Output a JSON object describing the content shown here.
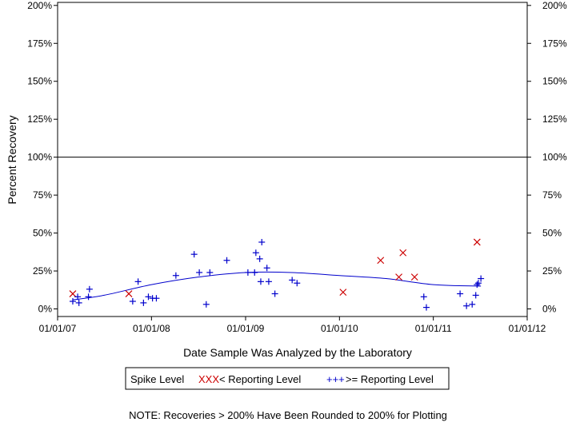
{
  "chart_data": {
    "type": "scatter",
    "xlabel": "Date Sample Was Analyzed by the Laboratory",
    "ylabel": "Percent Recovery",
    "x_ticks": [
      "01/01/07",
      "01/01/08",
      "01/01/09",
      "01/01/10",
      "01/01/11",
      "01/01/12"
    ],
    "xlim": [
      "2007-01-01",
      "2012-01-01"
    ],
    "y_ticks": [
      "0%",
      "25%",
      "50%",
      "75%",
      "100%",
      "125%",
      "150%",
      "175%",
      "200%"
    ],
    "ylim": [
      -5,
      202
    ],
    "reference_line": 100,
    "legend": {
      "title": "Spike Level",
      "entries": [
        {
          "symbol": "XXX",
          "label": "< Reporting Level",
          "color": "#cc0000"
        },
        {
          "symbol": "+++",
          "label": ">= Reporting Level",
          "color": "#0000cc"
        }
      ]
    },
    "note": "NOTE: Recoveries > 200% Have Been Rounded to 200% for Plotting",
    "series": [
      {
        "marker": "x",
        "color": "#cc0000",
        "points": [
          {
            "x": "2007-03-01",
            "y": 10
          },
          {
            "x": "2007-10-05",
            "y": 10
          },
          {
            "x": "2010-01-15",
            "y": 11
          },
          {
            "x": "2010-06-10",
            "y": 32
          },
          {
            "x": "2010-08-20",
            "y": 21
          },
          {
            "x": "2010-09-05",
            "y": 37
          },
          {
            "x": "2010-10-20",
            "y": 21
          },
          {
            "x": "2011-06-20",
            "y": 44
          }
        ]
      },
      {
        "marker": "+",
        "color": "#0000cc",
        "points": [
          {
            "x": "2007-03-01",
            "y": 5
          },
          {
            "x": "2007-03-20",
            "y": 8
          },
          {
            "x": "2007-03-25",
            "y": 4
          },
          {
            "x": "2007-05-01",
            "y": 8
          },
          {
            "x": "2007-05-05",
            "y": 13
          },
          {
            "x": "2007-10-20",
            "y": 5
          },
          {
            "x": "2007-11-10",
            "y": 18
          },
          {
            "x": "2007-12-01",
            "y": 4
          },
          {
            "x": "2007-12-20",
            "y": 8
          },
          {
            "x": "2008-01-05",
            "y": 7
          },
          {
            "x": "2008-01-20",
            "y": 7
          },
          {
            "x": "2008-04-05",
            "y": 22
          },
          {
            "x": "2008-06-15",
            "y": 36
          },
          {
            "x": "2008-07-05",
            "y": 24
          },
          {
            "x": "2008-08-01",
            "y": 3
          },
          {
            "x": "2008-08-15",
            "y": 24
          },
          {
            "x": "2008-10-20",
            "y": 32
          },
          {
            "x": "2009-01-10",
            "y": 24
          },
          {
            "x": "2009-02-05",
            "y": 24
          },
          {
            "x": "2009-02-10",
            "y": 37
          },
          {
            "x": "2009-02-25",
            "y": 33
          },
          {
            "x": "2009-03-01",
            "y": 18
          },
          {
            "x": "2009-03-05",
            "y": 44
          },
          {
            "x": "2009-03-25",
            "y": 27
          },
          {
            "x": "2009-04-01",
            "y": 18
          },
          {
            "x": "2009-04-25",
            "y": 10
          },
          {
            "x": "2009-07-01",
            "y": 19
          },
          {
            "x": "2009-07-20",
            "y": 17
          },
          {
            "x": "2010-11-25",
            "y": 8
          },
          {
            "x": "2010-12-05",
            "y": 1
          },
          {
            "x": "2011-04-15",
            "y": 10
          },
          {
            "x": "2011-05-10",
            "y": 2
          },
          {
            "x": "2011-06-01",
            "y": 3
          },
          {
            "x": "2011-06-15",
            "y": 9
          },
          {
            "x": "2011-06-20",
            "y": 16
          },
          {
            "x": "2011-06-25",
            "y": 17
          },
          {
            "x": "2011-07-05",
            "y": 20
          }
        ]
      }
    ],
    "trend": {
      "color": "#0000cc",
      "points": [
        {
          "x": "2007-03-01",
          "y": 6
        },
        {
          "x": "2007-07-01",
          "y": 9
        },
        {
          "x": "2008-01-01",
          "y": 16
        },
        {
          "x": "2008-07-01",
          "y": 21
        },
        {
          "x": "2009-01-01",
          "y": 24
        },
        {
          "x": "2009-07-01",
          "y": 24
        },
        {
          "x": "2010-01-01",
          "y": 22
        },
        {
          "x": "2010-07-01",
          "y": 20
        },
        {
          "x": "2011-01-01",
          "y": 16
        },
        {
          "x": "2011-07-05",
          "y": 15
        }
      ]
    }
  }
}
